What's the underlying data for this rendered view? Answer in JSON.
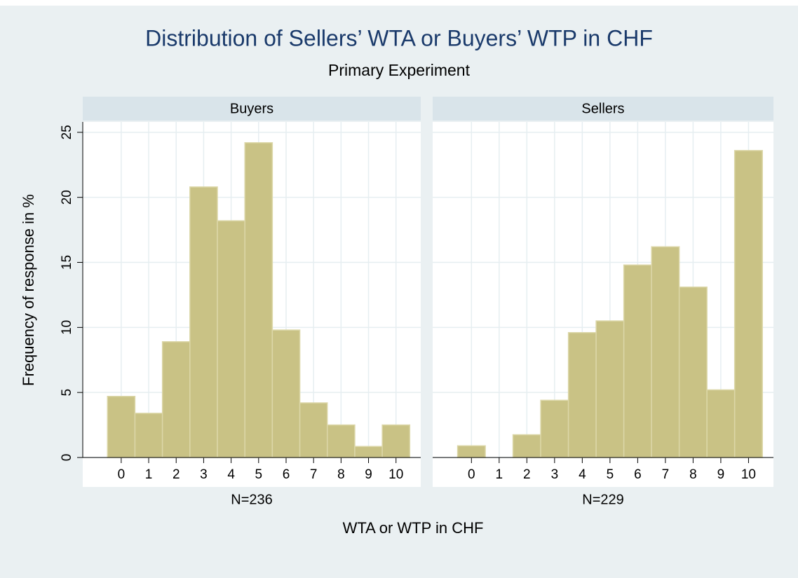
{
  "title": "Distribution of Sellers’ WTA or Buyers’ WTP in CHF",
  "subtitle": "Primary Experiment",
  "y_label": "Frequency of response in %",
  "x_label": "WTA or WTP in CHF",
  "chart_data": [
    {
      "type": "histogram",
      "panel": "Buyers",
      "note": "N=236",
      "color": "#c9c285",
      "bins": [
        -0.5,
        0.5,
        1.5,
        2.5,
        3.5,
        4.5,
        5.5,
        6.5,
        7.5,
        8.5,
        9.5,
        10.5
      ],
      "values": [
        4.7,
        3.4,
        8.9,
        20.8,
        18.2,
        24.2,
        9.8,
        4.2,
        2.5,
        0.85,
        2.5
      ],
      "xlim": [
        -1.4,
        10.9
      ],
      "xticks": [
        0,
        1,
        2,
        3,
        4,
        5,
        6,
        7,
        8,
        9,
        10
      ],
      "ylim": [
        0,
        25.8
      ],
      "yticks": [
        0,
        5,
        10,
        15,
        20,
        25
      ],
      "grid": true
    },
    {
      "type": "histogram",
      "panel": "Sellers",
      "note": "N=229",
      "color": "#c9c285",
      "bins": [
        -0.5,
        0.5,
        1.5,
        2.5,
        3.5,
        4.5,
        5.5,
        6.5,
        7.5,
        8.5,
        9.5,
        10.5
      ],
      "values": [
        0.9,
        0,
        1.75,
        4.4,
        9.6,
        10.5,
        14.8,
        16.2,
        13.1,
        5.2,
        23.6
      ],
      "xlim": [
        -1.4,
        10.9
      ],
      "xticks": [
        0,
        1,
        2,
        3,
        4,
        5,
        6,
        7,
        8,
        9,
        10
      ],
      "ylim": [
        0,
        25.8
      ],
      "yticks": [
        0,
        5,
        10,
        15,
        20,
        25
      ],
      "grid": true
    }
  ]
}
